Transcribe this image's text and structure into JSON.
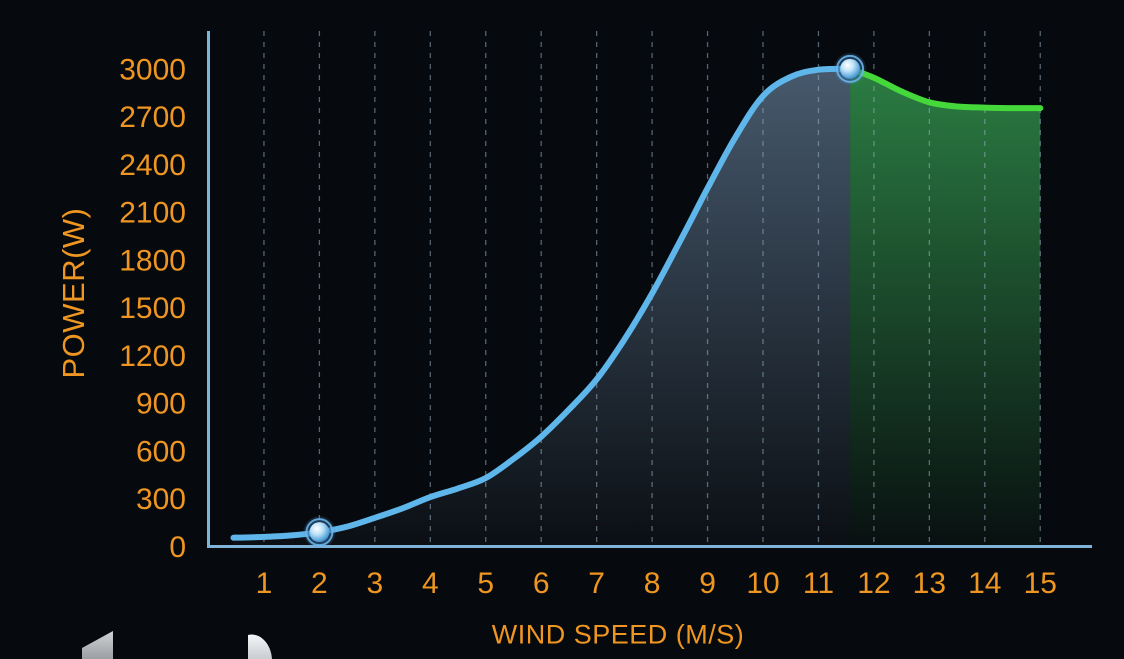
{
  "colors": {
    "background": "#06090d",
    "label_orange": "#ee9621",
    "axis_blue": "#7fb3d8",
    "grid_dash": "rgba(150,175,195,0.55)",
    "curve_blue": "#5fb6ea",
    "curve_green": "#45d83a",
    "fill_blue_top": "rgba(160,200,240,0.42)",
    "fill_blue_bottom": "rgba(160,200,240,0.03)",
    "fill_green_top": "rgba(80,240,120,0.50)",
    "fill_green_bottom": "rgba(80,240,120,0.03)",
    "marker_ring": "rgba(110,185,240,0.85)",
    "marker_core": "#ffffff",
    "marker_body": "#5aa7dc",
    "marker_edge": "#1e5f96",
    "logo_gray": "#b6babd",
    "logo_white": "#eef1f3"
  },
  "chart_data": {
    "type": "line",
    "title": "",
    "xlabel": "WIND SPEED (M/S)",
    "ylabel": "POWER(W)",
    "x_ticks": [
      1,
      2,
      3,
      4,
      5,
      6,
      7,
      8,
      9,
      10,
      11,
      12,
      13,
      14,
      15
    ],
    "y_ticks": [
      0,
      300,
      600,
      900,
      1200,
      1500,
      1800,
      2100,
      2400,
      2700,
      3000
    ],
    "xlim": [
      0,
      15.9
    ],
    "ylim": [
      0,
      3150
    ],
    "grid": "vertical-dashed",
    "legend": "none",
    "series": [
      {
        "name": "power-curve-rising",
        "color": "#5fb6ea",
        "points": [
          [
            0.45,
            55
          ],
          [
            1,
            60
          ],
          [
            1.5,
            70
          ],
          [
            2,
            90
          ],
          [
            2.5,
            125
          ],
          [
            3,
            180
          ],
          [
            3.5,
            240
          ],
          [
            4,
            310
          ],
          [
            4.5,
            365
          ],
          [
            5,
            430
          ],
          [
            5.5,
            550
          ],
          [
            6,
            690
          ],
          [
            6.5,
            860
          ],
          [
            7,
            1050
          ],
          [
            7.5,
            1300
          ],
          [
            8,
            1590
          ],
          [
            8.5,
            1915
          ],
          [
            9,
            2250
          ],
          [
            9.5,
            2570
          ],
          [
            10,
            2830
          ],
          [
            10.5,
            2950
          ],
          [
            11,
            2995
          ],
          [
            11.57,
            3000
          ]
        ]
      },
      {
        "name": "power-curve-rated",
        "color": "#45d83a",
        "points": [
          [
            11.57,
            3000
          ],
          [
            12,
            2945
          ],
          [
            12.5,
            2858
          ],
          [
            13,
            2790
          ],
          [
            13.5,
            2764
          ],
          [
            14,
            2757
          ],
          [
            14.5,
            2754
          ],
          [
            15,
            2754
          ]
        ]
      }
    ],
    "markers": [
      {
        "x": 2,
        "y": 90
      },
      {
        "x": 11.57,
        "y": 3000
      }
    ]
  },
  "axes": {
    "x_title": "WIND SPEED (M/S)",
    "y_title": "POWER(W)"
  },
  "logo": {
    "name": "partial-logo-bottom-left"
  }
}
